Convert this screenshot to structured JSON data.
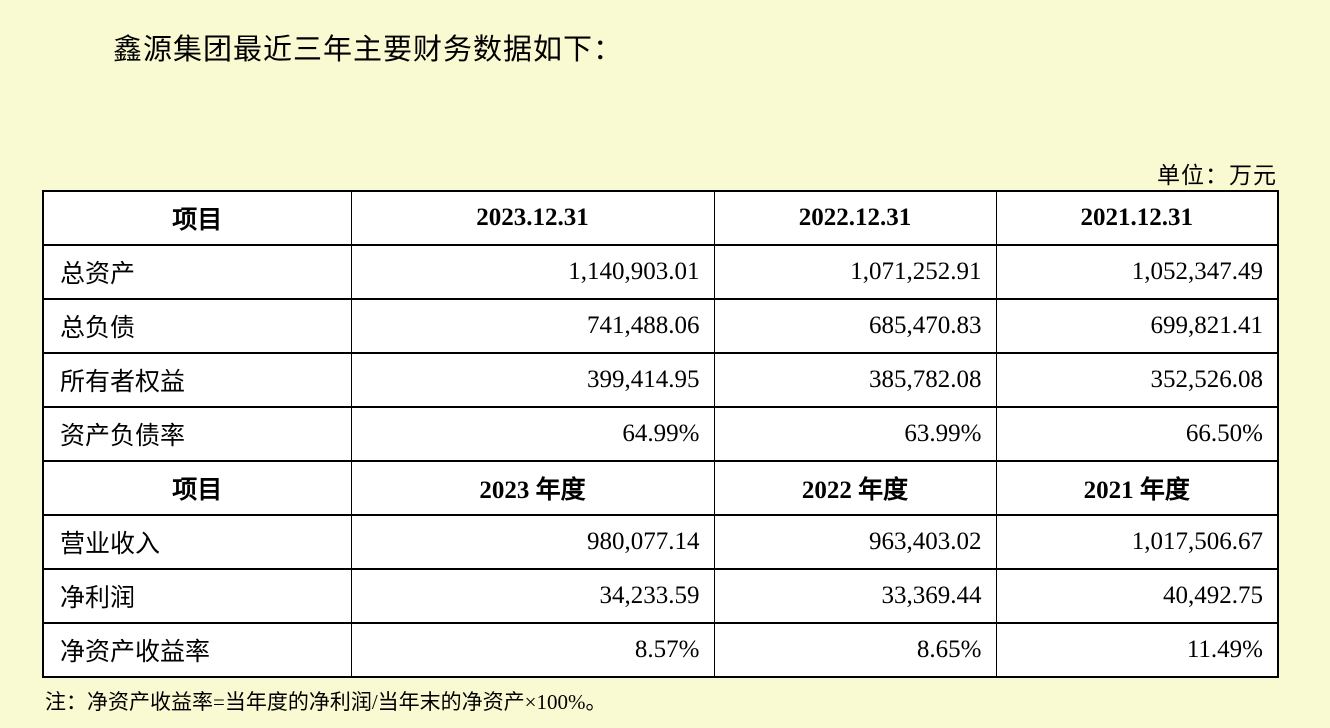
{
  "page": {
    "title": "鑫源集团最近三年主要财务数据如下：",
    "unit_label": "单位：万元",
    "note": "注：净资产收益率=当年度的净利润/当年末的净资产×100%。"
  },
  "table": {
    "section1": {
      "headers": [
        "项目",
        "2023.12.31",
        "2022.12.31",
        "2021.12.31"
      ],
      "rows": [
        {
          "label": "总资产",
          "values": [
            "1,140,903.01",
            "1,071,252.91",
            "1,052,347.49"
          ]
        },
        {
          "label": "总负债",
          "values": [
            "741,488.06",
            "685,470.83",
            "699,821.41"
          ]
        },
        {
          "label": "所有者权益",
          "values": [
            "399,414.95",
            "385,782.08",
            "352,526.08"
          ]
        },
        {
          "label": "资产负债率",
          "values": [
            "64.99%",
            "63.99%",
            "66.50%"
          ]
        }
      ]
    },
    "section2": {
      "headers": [
        "项目",
        "2023 年度",
        "2022 年度",
        "2021 年度"
      ],
      "rows": [
        {
          "label": "营业收入",
          "values": [
            "980,077.14",
            "963,403.02",
            "1,017,506.67"
          ]
        },
        {
          "label": "净利润",
          "values": [
            "34,233.59",
            "33,369.44",
            "40,492.75"
          ]
        },
        {
          "label": "净资产收益率",
          "values": [
            "8.57%",
            "8.65%",
            "11.49%"
          ]
        }
      ]
    }
  },
  "colors": {
    "page_background": "#FAFAD2",
    "cell_background": "#FFFFFF",
    "border": "#000000",
    "text": "#000000"
  }
}
